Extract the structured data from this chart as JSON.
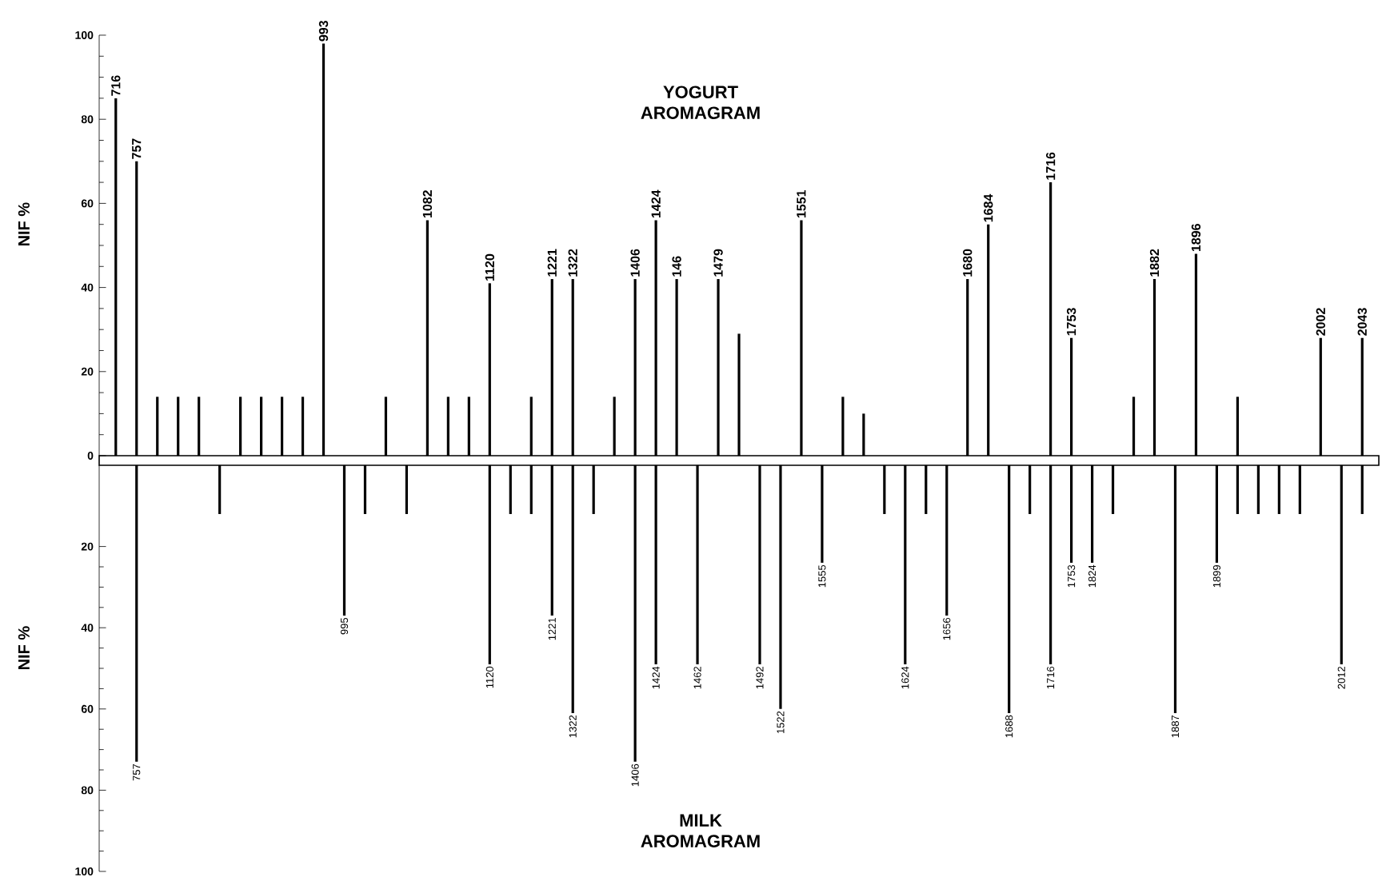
{
  "chart_data": [
    {
      "type": "bar",
      "title": "YOGURT AROMAGRAM",
      "ylabel": "NIF %",
      "color": "#000000",
      "categories": [
        "716",
        "757",
        null,
        null,
        null,
        null,
        null,
        null,
        null,
        null,
        "993",
        null,
        null,
        null,
        null,
        "1082",
        null,
        null,
        "1120",
        null,
        null,
        "1221",
        "1322",
        null,
        null,
        "1406",
        "1424",
        "146",
        null,
        "1479",
        null,
        null,
        null,
        "1551",
        null,
        null,
        null,
        null,
        null,
        null,
        null,
        "1680",
        "1684",
        null,
        null,
        "1716",
        "1753",
        null,
        null,
        null,
        "1882",
        null,
        "1896",
        null,
        null,
        null,
        null,
        null,
        "2002",
        null,
        "2043"
      ],
      "values": [
        85,
        70,
        14,
        14,
        14,
        null,
        14,
        14,
        14,
        14,
        98,
        null,
        null,
        14,
        null,
        56,
        14,
        14,
        41,
        null,
        14,
        42,
        42,
        null,
        14,
        42,
        56,
        42,
        null,
        42,
        29,
        null,
        null,
        56,
        null,
        14,
        10,
        null,
        null,
        null,
        null,
        42,
        55,
        null,
        null,
        65,
        28,
        null,
        null,
        14,
        42,
        null,
        48,
        null,
        14,
        null,
        null,
        null,
        28,
        null,
        28
      ],
      "ylim": [
        0,
        100
      ],
      "yticks": [
        0,
        20,
        40,
        60,
        80,
        100
      ],
      "tick_labels": "y"
    },
    {
      "type": "bar",
      "title": "MILK AROMAGRAM",
      "ylabel": "NIF %",
      "color": "#000000",
      "categories": [
        null,
        "757",
        null,
        null,
        null,
        null,
        null,
        null,
        null,
        null,
        null,
        "995",
        null,
        null,
        null,
        null,
        null,
        null,
        "1120",
        null,
        null,
        "1221",
        "1322",
        null,
        null,
        "1406",
        "1424",
        null,
        "1462",
        null,
        null,
        "1492",
        "1522",
        null,
        "1555",
        null,
        null,
        null,
        "1624",
        null,
        "1656",
        null,
        null,
        "1688",
        null,
        "1716",
        "1753",
        "1824",
        null,
        null,
        null,
        "1887",
        null,
        "1899",
        null,
        null,
        null,
        null,
        null,
        "2012",
        null
      ],
      "values": [
        null,
        73,
        null,
        null,
        null,
        12,
        null,
        null,
        null,
        null,
        null,
        37,
        12,
        null,
        12,
        null,
        null,
        null,
        49,
        12,
        12,
        37,
        61,
        12,
        null,
        73,
        49,
        null,
        49,
        null,
        null,
        49,
        60,
        null,
        24,
        null,
        null,
        12,
        49,
        12,
        37,
        null,
        null,
        61,
        12,
        49,
        24,
        24,
        12,
        null,
        null,
        61,
        null,
        24,
        12,
        12,
        12,
        12,
        null,
        49,
        12
      ],
      "ylim": [
        100,
        0
      ],
      "yticks": [
        20,
        40,
        60,
        80,
        100
      ],
      "tick_labels": "y"
    }
  ]
}
